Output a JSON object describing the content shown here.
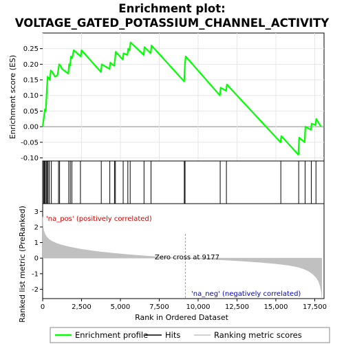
{
  "chart_data": {
    "type": "line",
    "title_line1": "Enrichment plot:",
    "title_line2": "VOLTAGE_GATED_POTASSIUM_CHANNEL_ACTIVITY",
    "es_panel": {
      "ylabel": "Enrichment score (ES)",
      "ylim": [
        -0.11,
        0.3
      ],
      "yticks": [
        -0.1,
        -0.05,
        0.0,
        0.05,
        0.1,
        0.15,
        0.2,
        0.25
      ],
      "ytick_labels": [
        "-0.10",
        "-0.05",
        "0.00",
        "0.05",
        "0.10",
        "0.15",
        "0.20",
        "0.25"
      ],
      "series_name": "Enrichment profile",
      "color": "#00ff00",
      "x": [
        0,
        80,
        140,
        200,
        260,
        320,
        380,
        460,
        520,
        620,
        800,
        950,
        1000,
        1060,
        1150,
        1250,
        1650,
        1700,
        1760,
        1820,
        1900,
        2000,
        2450,
        2500,
        3750,
        3800,
        4300,
        4350,
        4600,
        4650,
        4700,
        5150,
        5200,
        5450,
        5500,
        5600,
        5650,
        6500,
        6550,
        6950,
        7000,
        9100,
        9120,
        9150,
        9200,
        11400,
        11450,
        11800,
        11850,
        15300,
        15350,
        16450,
        16500,
        16850,
        16900,
        17250,
        17300,
        17550,
        17600,
        17900
      ],
      "y": [
        0.0,
        0.03,
        0.055,
        0.05,
        0.11,
        0.16,
        0.155,
        0.15,
        0.18,
        0.175,
        0.16,
        0.165,
        0.18,
        0.2,
        0.195,
        0.185,
        0.17,
        0.2,
        0.195,
        0.225,
        0.22,
        0.245,
        0.225,
        0.245,
        0.175,
        0.2,
        0.185,
        0.205,
        0.195,
        0.215,
        0.24,
        0.215,
        0.235,
        0.23,
        0.25,
        0.245,
        0.27,
        0.23,
        0.255,
        0.235,
        0.26,
        0.145,
        0.165,
        0.2,
        0.225,
        0.1,
        0.125,
        0.115,
        0.135,
        -0.05,
        -0.03,
        -0.09,
        -0.035,
        -0.05,
        0.0,
        -0.01,
        0.01,
        0.005,
        0.025,
        0.0
      ]
    },
    "hits_panel": {
      "hit_positions": [
        60,
        110,
        170,
        230,
        290,
        350,
        430,
        560,
        1020,
        1090,
        1680,
        1780,
        1880,
        2430,
        3770,
        4320,
        4620,
        4680,
        5180,
        5480,
        5630,
        6520,
        6970,
        9110,
        9160,
        11420,
        11820,
        15320,
        16470,
        16880,
        17280,
        17580
      ]
    },
    "colorbar": {
      "segments": [
        {
          "from": 0,
          "to": 700,
          "color": "#d60000"
        },
        {
          "from": 700,
          "to": 2600,
          "color": "#e8303a"
        },
        {
          "from": 2600,
          "to": 4500,
          "color": "#f04a5a"
        },
        {
          "from": 4500,
          "to": 6700,
          "color": "#f56a86"
        },
        {
          "from": 6700,
          "to": 9177,
          "color": "#f8b8e2"
        },
        {
          "from": 9177,
          "to": 11800,
          "color": "#d8d4f8"
        },
        {
          "from": 11800,
          "to": 13200,
          "color": "#bbb7f4"
        },
        {
          "from": 13200,
          "to": 14600,
          "color": "#7b73ee"
        },
        {
          "from": 14600,
          "to": 16800,
          "color": "#5b4fe8"
        },
        {
          "from": 16800,
          "to": 17150,
          "color": "#3a2ee0"
        },
        {
          "from": 17150,
          "to": 17950,
          "color": "#1c00c8"
        }
      ]
    },
    "metric_panel": {
      "ylabel": "Ranked list metric (PreRanked)",
      "ylim": [
        -2.6,
        3.5
      ],
      "yticks": [
        -2,
        -1,
        0,
        1,
        2,
        3
      ],
      "ytick_labels": [
        "-2",
        "-1",
        "0",
        "1",
        "2",
        "3"
      ],
      "series_name": "Ranking metric scores",
      "color": "#c0c0c0",
      "x": [
        0,
        30,
        80,
        150,
        250,
        400,
        600,
        900,
        1300,
        1800,
        2500,
        3500,
        4500,
        5500,
        6500,
        7500,
        8500,
        9177,
        10000,
        11000,
        12000,
        13000,
        14000,
        15000,
        15800,
        16300,
        16700,
        17000,
        17200,
        17400,
        17600,
        17750,
        17850,
        17930,
        17960
      ],
      "y": [
        2.65,
        2.0,
        1.75,
        1.55,
        1.38,
        1.22,
        1.08,
        0.95,
        0.82,
        0.7,
        0.57,
        0.43,
        0.32,
        0.23,
        0.15,
        0.08,
        0.03,
        0.0,
        -0.04,
        -0.09,
        -0.14,
        -0.2,
        -0.27,
        -0.36,
        -0.45,
        -0.55,
        -0.66,
        -0.78,
        -0.9,
        -1.05,
        -1.25,
        -1.5,
        -1.8,
        -2.2,
        -2.55
      ]
    },
    "label_pos": "'na_pos' (positively correlated)",
    "label_pos_color": "#cc0000",
    "label_neg": "'na_neg' (negatively correlated)",
    "label_neg_color": "#0000cc",
    "zero_cross_label": "Zero cross at 9177",
    "zero_cross_x": 9177,
    "xlabel": "Rank in Ordered Dataset",
    "xlim": [
      0,
      18100
    ],
    "xticks": [
      0,
      2500,
      5000,
      7500,
      10000,
      12500,
      15000,
      17500
    ],
    "xtick_labels": [
      "0",
      "2,500",
      "5,000",
      "7,500",
      "10,000",
      "12,500",
      "15,000",
      "17,500"
    ],
    "legend": {
      "entries": [
        {
          "label": "Enrichment profile",
          "color": "#00ff00",
          "style": "line"
        },
        {
          "label": "Hits",
          "color": "#000000",
          "style": "line"
        },
        {
          "label": "Ranking metric scores",
          "color": "#c0c0c0",
          "style": "line"
        }
      ]
    }
  }
}
